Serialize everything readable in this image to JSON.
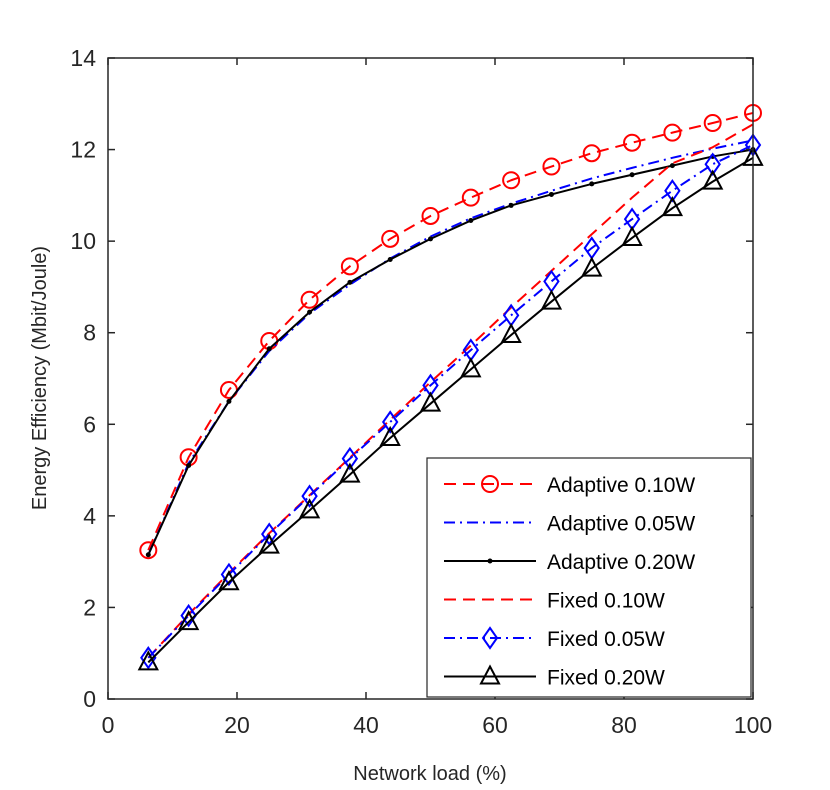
{
  "chart_data": {
    "type": "line",
    "xlabel": "Network load (%)",
    "ylabel": "Energy Efficiency (Mbit/Joule)",
    "xlim": [
      0,
      100
    ],
    "ylim": [
      0,
      14
    ],
    "xticks": [
      0,
      20,
      40,
      60,
      80,
      100
    ],
    "yticks": [
      0,
      2,
      4,
      6,
      8,
      10,
      12,
      14
    ],
    "grid": false,
    "legend_position": "bottom-right",
    "x": [
      6.25,
      12.5,
      18.75,
      25,
      31.25,
      37.5,
      43.75,
      50,
      56.25,
      62.5,
      68.75,
      75,
      81.25,
      87.5,
      93.75,
      100
    ],
    "series": [
      {
        "name": "Adaptive 0.10W",
        "color": "#ff0000",
        "line": "dashed",
        "marker": "circle",
        "values": [
          3.25,
          5.28,
          6.75,
          7.82,
          8.72,
          9.45,
          10.05,
          10.55,
          10.95,
          11.33,
          11.63,
          11.92,
          12.15,
          12.37,
          12.58,
          12.8
        ]
      },
      {
        "name": "Adaptive 0.05W",
        "color": "#0000ff",
        "line": "dashdot",
        "marker": "none",
        "values": [
          3.15,
          5.15,
          6.5,
          7.6,
          8.42,
          9.05,
          9.62,
          10.1,
          10.5,
          10.82,
          11.1,
          11.37,
          11.6,
          11.82,
          12.02,
          12.2
        ]
      },
      {
        "name": "Adaptive 0.20W",
        "color": "#000000",
        "line": "solid",
        "marker": "dot",
        "values": [
          3.15,
          5.1,
          6.5,
          7.65,
          8.45,
          9.1,
          9.6,
          10.05,
          10.45,
          10.78,
          11.02,
          11.25,
          11.45,
          11.65,
          11.85,
          12.0
        ]
      },
      {
        "name": "Fixed 0.10W",
        "color": "#ff0000",
        "line": "dashed",
        "marker": "none",
        "values": [
          0.9,
          1.85,
          2.75,
          3.62,
          4.45,
          5.27,
          6.1,
          6.92,
          7.72,
          8.55,
          9.35,
          10.15,
          10.95,
          11.7,
          12.05,
          12.55
        ]
      },
      {
        "name": "Fixed 0.05W",
        "color": "#0000ff",
        "line": "dashdot",
        "marker": "diamond",
        "values": [
          0.9,
          1.82,
          2.72,
          3.6,
          4.43,
          5.25,
          6.05,
          6.85,
          7.62,
          8.38,
          9.12,
          9.85,
          10.48,
          11.1,
          11.68,
          12.1
        ]
      },
      {
        "name": "Fixed 0.20W",
        "color": "#000000",
        "line": "solid",
        "marker": "triangle",
        "values": [
          0.8,
          1.68,
          2.55,
          3.35,
          4.12,
          4.9,
          5.7,
          6.45,
          7.2,
          7.95,
          8.68,
          9.4,
          10.07,
          10.72,
          11.3,
          11.82
        ]
      }
    ]
  }
}
